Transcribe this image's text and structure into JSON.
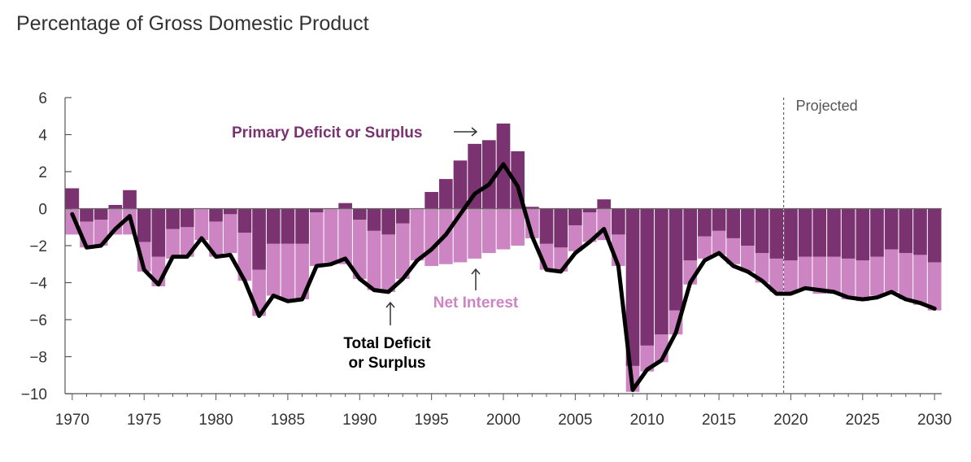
{
  "header": {
    "title": "Percentage of Gross Domestic Product"
  },
  "colors": {
    "primary": "#7a3370",
    "net_interest": "#cc84c2",
    "total": "#000000",
    "axis": "#555555"
  },
  "chart_data": {
    "type": "bar",
    "stacked": true,
    "title": "Percentage of Gross Domestic Product",
    "xlabel": "",
    "ylabel": "",
    "x": [
      1970,
      1971,
      1972,
      1973,
      1974,
      1975,
      1976,
      1977,
      1978,
      1979,
      1980,
      1981,
      1982,
      1983,
      1984,
      1985,
      1986,
      1987,
      1988,
      1989,
      1990,
      1991,
      1992,
      1993,
      1994,
      1995,
      1996,
      1997,
      1998,
      1999,
      2000,
      2001,
      2002,
      2003,
      2004,
      2005,
      2006,
      2007,
      2008,
      2009,
      2010,
      2011,
      2012,
      2013,
      2014,
      2015,
      2016,
      2017,
      2018,
      2019,
      2020,
      2021,
      2022,
      2023,
      2024,
      2025,
      2026,
      2027,
      2028,
      2029,
      2030
    ],
    "ylim": [
      -10,
      6
    ],
    "xlim": [
      1969.5,
      2030.5
    ],
    "yticks": [
      "6",
      "4",
      "2",
      "0",
      "−2",
      "−4",
      "−6",
      "−8",
      "−10"
    ],
    "yticks_values": [
      6,
      4,
      2,
      0,
      -2,
      -4,
      -6,
      -8,
      -10
    ],
    "xticks": [
      "1970",
      "1975",
      "1980",
      "1985",
      "1990",
      "1995",
      "2000",
      "2005",
      "2010",
      "2015",
      "2020",
      "2025",
      "2030"
    ],
    "xticks_values": [
      1970,
      1975,
      1980,
      1985,
      1990,
      1995,
      2000,
      2005,
      2010,
      2015,
      2020,
      2025,
      2030
    ],
    "series": [
      {
        "name": "Net Interest",
        "kind": "bar",
        "values": [
          -1.4,
          -1.4,
          -1.4,
          -1.4,
          -1.4,
          -1.6,
          -1.6,
          -1.6,
          -1.6,
          -1.7,
          -1.9,
          -2.1,
          -2.6,
          -2.5,
          -2.8,
          -3.0,
          -3.0,
          -2.9,
          -2.9,
          -3.0,
          -3.2,
          -3.2,
          -3.1,
          -3.0,
          -2.8,
          -3.1,
          -3.0,
          -2.9,
          -2.7,
          -2.4,
          -2.2,
          -2.0,
          -1.6,
          -1.4,
          -1.3,
          -1.4,
          -1.6,
          -1.7,
          -1.7,
          -1.4,
          -1.4,
          -1.5,
          -1.3,
          -1.3,
          -1.2,
          -1.3,
          -1.4,
          -1.4,
          -1.6,
          -1.8,
          -1.7,
          -1.7,
          -2.0,
          -2.0,
          -2.2,
          -2.2,
          -2.1,
          -2.3,
          -2.5,
          -2.7,
          -2.6
        ]
      },
      {
        "name": "Primary Deficit or Surplus",
        "kind": "bar",
        "values": [
          1.1,
          -0.7,
          -0.6,
          0.2,
          1.0,
          -1.8,
          -2.6,
          -1.1,
          -1.0,
          -0.0,
          -0.7,
          -0.3,
          -1.3,
          -3.3,
          -1.9,
          -1.9,
          -1.9,
          -0.2,
          -0.0,
          0.3,
          -0.6,
          -1.2,
          -1.4,
          -0.8,
          0.0,
          0.9,
          1.6,
          2.6,
          3.5,
          3.7,
          4.6,
          3.1,
          0.1,
          -1.9,
          -2.1,
          -0.9,
          -0.2,
          0.5,
          -1.4,
          -8.5,
          -7.4,
          -6.8,
          -5.5,
          -2.8,
          -1.5,
          -1.2,
          -1.6,
          -2.0,
          -2.4,
          -2.7,
          -2.8,
          -2.6,
          -2.6,
          -2.6,
          -2.7,
          -2.8,
          -2.6,
          -2.2,
          -2.4,
          -2.5,
          -2.9
        ]
      },
      {
        "name": "Total Deficit or Surplus",
        "kind": "line",
        "values": [
          -0.3,
          -2.1,
          -2.0,
          -1.1,
          -0.4,
          -3.3,
          -4.1,
          -2.6,
          -2.6,
          -1.6,
          -2.6,
          -2.5,
          -3.9,
          -5.8,
          -4.7,
          -5.0,
          -4.9,
          -3.1,
          -3.0,
          -2.7,
          -3.8,
          -4.4,
          -4.5,
          -3.8,
          -2.8,
          -2.2,
          -1.4,
          -0.3,
          0.8,
          1.3,
          2.4,
          1.2,
          -1.5,
          -3.3,
          -3.4,
          -2.4,
          -1.8,
          -1.1,
          -3.1,
          -9.8,
          -8.7,
          -8.2,
          -6.7,
          -4.0,
          -2.8,
          -2.4,
          -3.1,
          -3.4,
          -3.9,
          -4.6,
          -4.6,
          -4.3,
          -4.4,
          -4.5,
          -4.8,
          -4.9,
          -4.8,
          -4.5,
          -4.9,
          -5.1,
          -5.4
        ]
      }
    ],
    "projected_from": 2019.5,
    "annotations": {
      "projected": "Projected",
      "primary": "Primary Deficit or Surplus",
      "net_interest": "Net Interest",
      "total_line1": "Total Deficit",
      "total_line2": "or Surplus"
    }
  }
}
